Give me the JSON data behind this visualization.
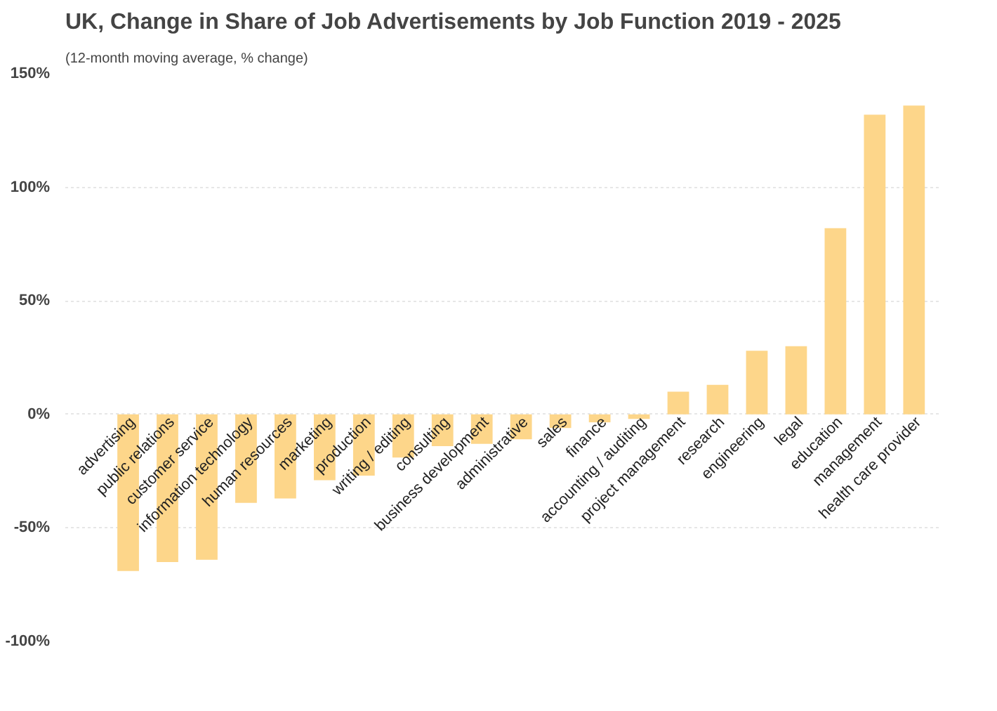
{
  "chart_data": {
    "type": "bar",
    "title": "UK, Change in Share of Job Advertisements by Job Function 2019 - 2025",
    "subtitle": "(12-month moving average, % change)",
    "categories": [
      "advertising",
      "public relations",
      "customer service",
      "information technology",
      "human resources",
      "marketing",
      "production",
      "writing / editing",
      "consulting",
      "business development",
      "administrative",
      "sales",
      "finance",
      "accounting / auditing",
      "project management",
      "research",
      "engineering",
      "legal",
      "education",
      "management",
      "health care provider"
    ],
    "values": [
      -69,
      -65,
      -64,
      -39,
      -37,
      -29,
      -27,
      -19,
      -14,
      -13,
      -11,
      -6,
      -3.5,
      -2,
      10,
      13,
      28,
      30,
      82,
      132,
      136
    ],
    "color": "#fdd68a",
    "ylim": [
      -100,
      150
    ],
    "yticks": [
      {
        "value": -100,
        "label": "-100%"
      },
      {
        "value": -50,
        "label": "-50%"
      },
      {
        "value": 0,
        "label": "0%"
      },
      {
        "value": 50,
        "label": "50%"
      },
      {
        "value": 100,
        "label": "100%"
      },
      {
        "value": 150,
        "label": "150%"
      }
    ],
    "grid": "y"
  }
}
